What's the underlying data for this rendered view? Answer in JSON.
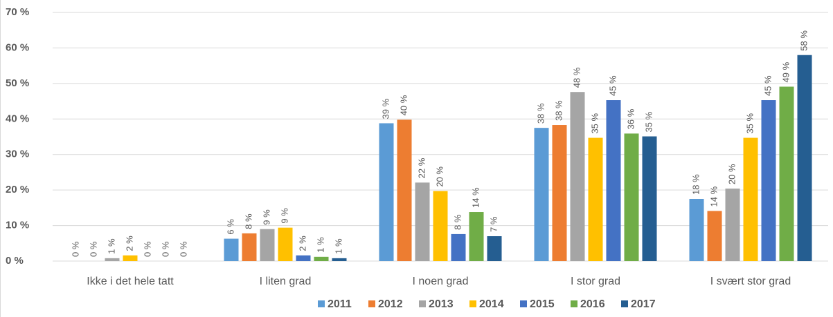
{
  "chart_data": {
    "type": "bar",
    "categories": [
      "Ikke i det hele tatt",
      "I liten grad",
      "I noen grad",
      "I stor grad",
      "I svært stor grad"
    ],
    "series": [
      {
        "name": "2011",
        "color": "#5b9bd5",
        "values": [
          0,
          6.3,
          38.8,
          37.5,
          17.5
        ],
        "value_labels": [
          "0 %",
          "6 %",
          "39 %",
          "38 %",
          "18 %"
        ]
      },
      {
        "name": "2012",
        "color": "#ed7d31",
        "values": [
          0,
          7.8,
          39.8,
          38.3,
          14.1
        ],
        "value_labels": [
          "0 %",
          "8 %",
          "40 %",
          "38 %",
          "14 %"
        ]
      },
      {
        "name": "2013",
        "color": "#a5a5a5",
        "values": [
          0.8,
          9.0,
          22.1,
          47.6,
          20.4
        ],
        "value_labels": [
          "1 %",
          "9 %",
          "22 %",
          "48 %",
          "20 %"
        ]
      },
      {
        "name": "2014",
        "color": "#ffc000",
        "values": [
          1.6,
          9.4,
          19.7,
          34.7,
          34.7
        ],
        "value_labels": [
          "2 %",
          "9 %",
          "20 %",
          "35 %",
          "35 %"
        ]
      },
      {
        "name": "2015",
        "color": "#4472c4",
        "values": [
          0,
          1.6,
          7.6,
          45.3,
          45.3
        ],
        "value_labels": [
          "0 %",
          "2 %",
          "8 %",
          "45 %",
          "45 %"
        ]
      },
      {
        "name": "2016",
        "color": "#70ad47",
        "values": [
          0,
          1.2,
          13.8,
          35.9,
          49.1
        ],
        "value_labels": [
          "0 %",
          "1 %",
          "14 %",
          "36 %",
          "49 %"
        ]
      },
      {
        "name": "2017",
        "color": "#255e91",
        "values": [
          0,
          0.8,
          7.0,
          35.1,
          58.0
        ],
        "value_labels": [
          "0 %",
          "1 %",
          "7 %",
          "35 %",
          "58 %"
        ]
      }
    ],
    "ylim": [
      0,
      70
    ],
    "yticks": [
      {
        "value": 0,
        "label": "0 %"
      },
      {
        "value": 10,
        "label": "10 %"
      },
      {
        "value": 20,
        "label": "20 %"
      },
      {
        "value": 30,
        "label": "30 %"
      },
      {
        "value": 40,
        "label": "40 %"
      },
      {
        "value": 50,
        "label": "50 %"
      },
      {
        "value": 60,
        "label": "60 %"
      },
      {
        "value": 70,
        "label": "70 %"
      }
    ],
    "grid": true,
    "legend": "bottom"
  }
}
